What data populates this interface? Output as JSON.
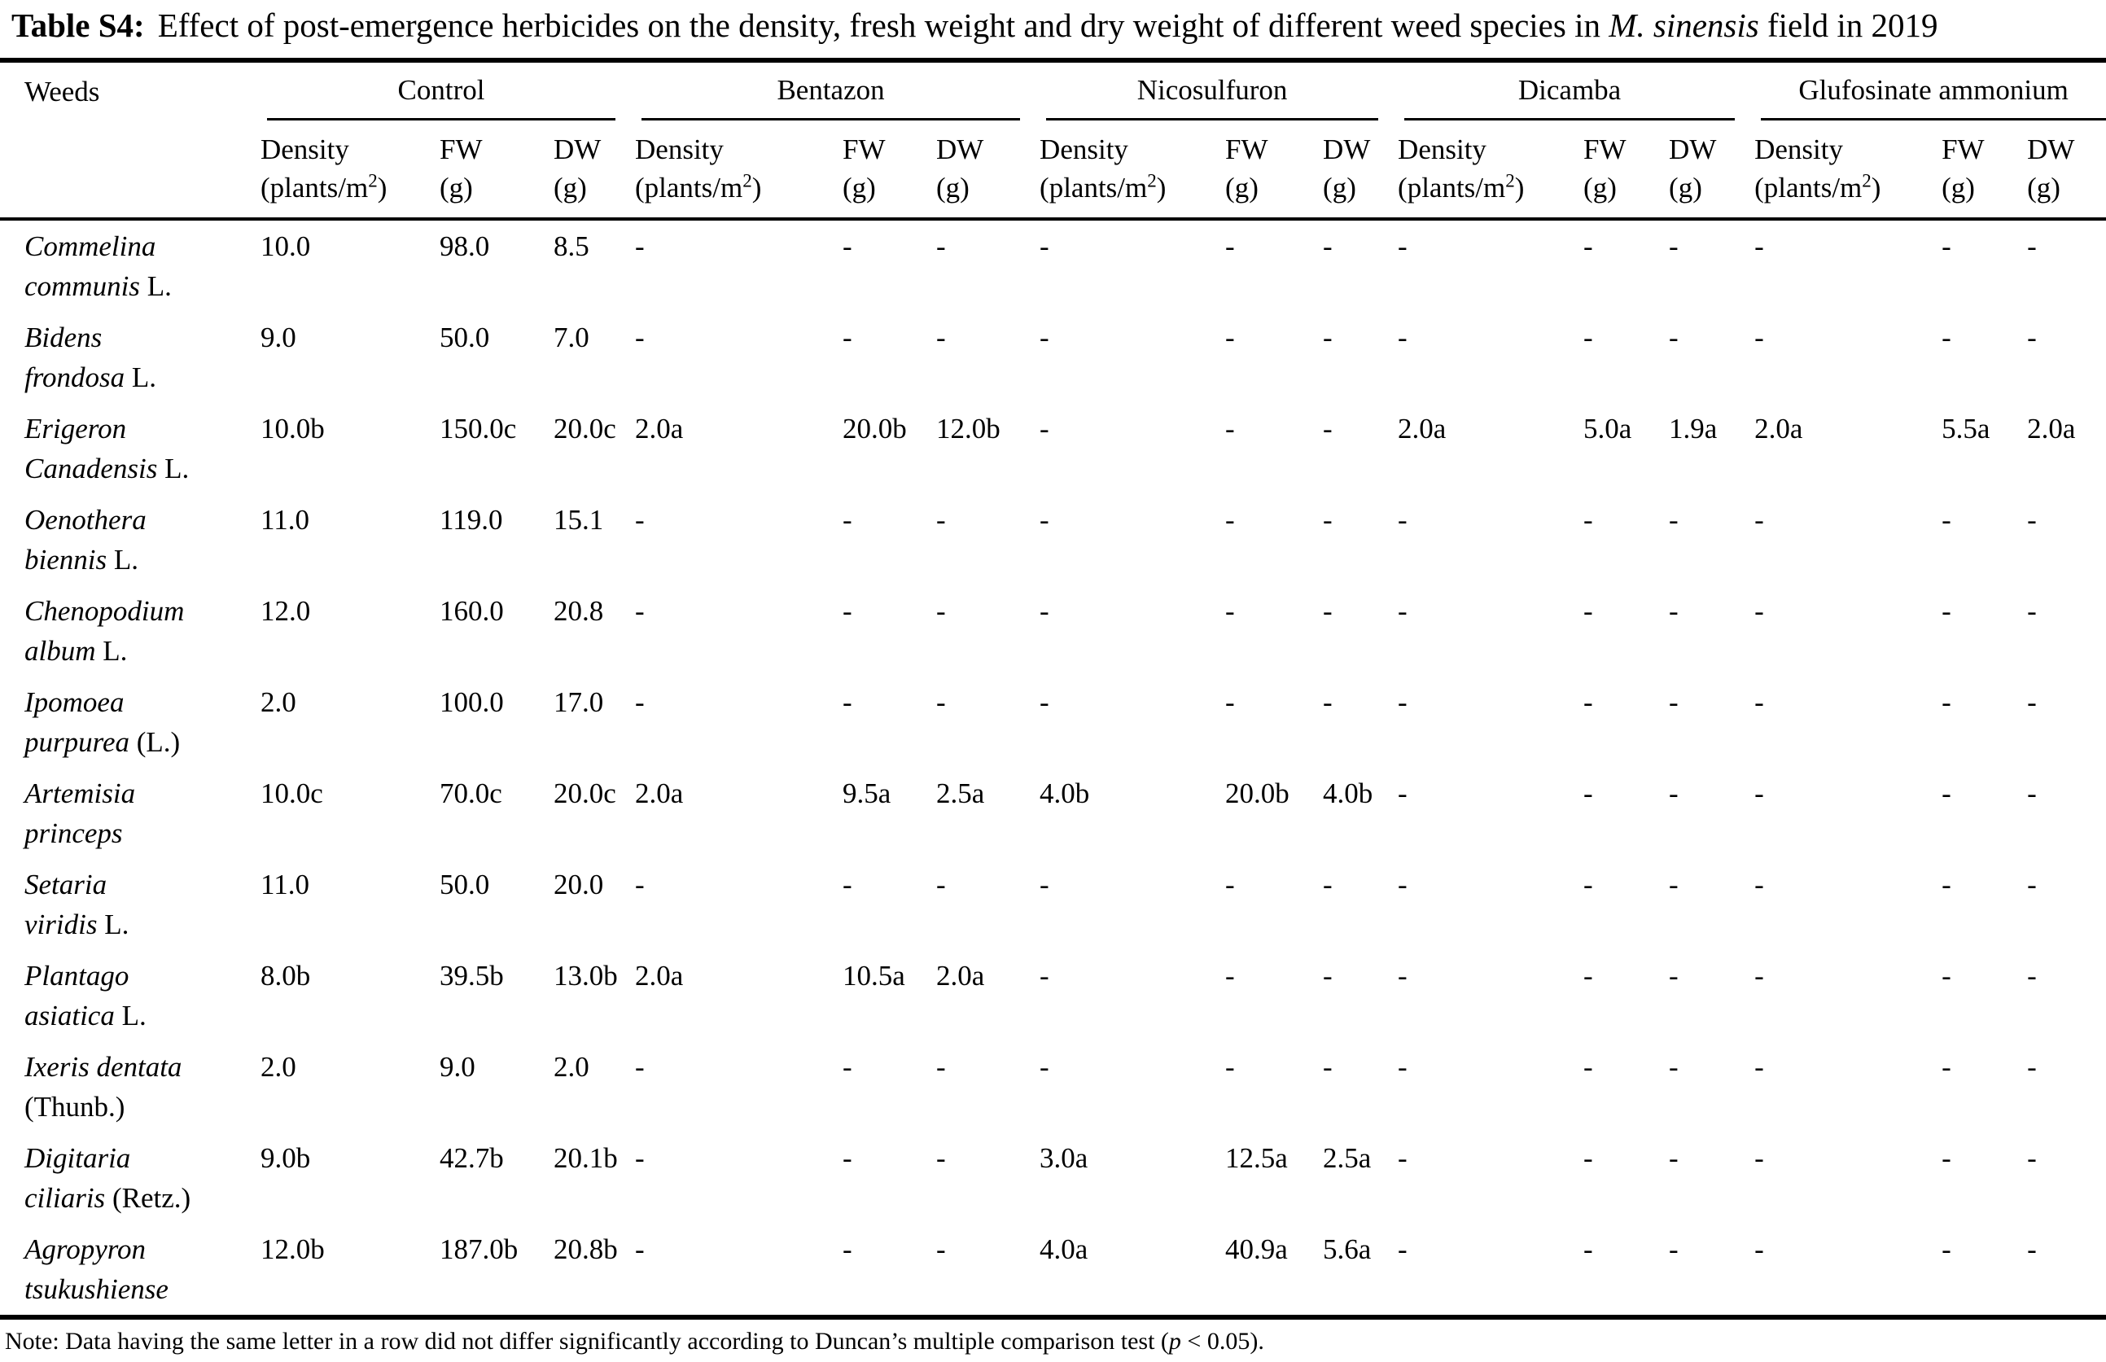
{
  "title": {
    "label": "Table S4:",
    "before_italic": "Effect of post-emergence herbicides on the density, fresh weight and dry weight of different weed species in ",
    "italic": "M. sinensis",
    "after_italic": " field in 2019"
  },
  "table": {
    "weeds_header": "Weeds",
    "groups": [
      "Control",
      "Bentazon",
      "Nicosulfuron",
      "Dicamba",
      "Glufosinate ammonium"
    ],
    "col_headers": {
      "density": {
        "line1": "Density",
        "line2_pre": "(plants/m",
        "line2_sup": "2",
        "line2_post": ")"
      },
      "fw": {
        "line1": "FW",
        "line2": "(g)"
      },
      "dw": {
        "line1": "DW",
        "line2": "(g)"
      }
    },
    "rows": [
      {
        "name": {
          "line1_italic": "Commelina",
          "line1_regular": "",
          "line2_italic": "communis",
          "line2_regular": " L."
        },
        "cells": [
          "10.0",
          "98.0",
          "8.5",
          "-",
          "-",
          "-",
          "-",
          "-",
          "-",
          "-",
          "-",
          "-",
          "-",
          "-",
          "-"
        ]
      },
      {
        "name": {
          "line1_italic": "Bidens",
          "line1_regular": "",
          "line2_italic": "frondosa",
          "line2_regular": " L."
        },
        "cells": [
          "9.0",
          "50.0",
          "7.0",
          "-",
          "-",
          "-",
          "-",
          "-",
          "-",
          "-",
          "-",
          "-",
          "-",
          "-",
          "-"
        ]
      },
      {
        "name": {
          "line1_italic": "Erigeron",
          "line1_regular": "",
          "line2_italic": "Canadensis",
          "line2_regular": " L."
        },
        "cells": [
          "10.0b",
          "150.0c",
          "20.0c",
          "2.0a",
          "20.0b",
          "12.0b",
          "-",
          "-",
          "-",
          "2.0a",
          "5.0a",
          "1.9a",
          "2.0a",
          "5.5a",
          "2.0a"
        ]
      },
      {
        "name": {
          "line1_italic": "Oenothera",
          "line1_regular": "",
          "line2_italic": "biennis",
          "line2_regular": " L."
        },
        "cells": [
          "11.0",
          "119.0",
          "15.1",
          "-",
          "-",
          "-",
          "-",
          "-",
          "-",
          "-",
          "-",
          "-",
          "-",
          "-",
          "-"
        ]
      },
      {
        "name": {
          "line1_italic": "Chenopodium",
          "line1_regular": "",
          "line2_italic": "album",
          "line2_regular": " L."
        },
        "cells": [
          "12.0",
          "160.0",
          "20.8",
          "-",
          "-",
          "-",
          "-",
          "-",
          "-",
          "-",
          "-",
          "-",
          "-",
          "-",
          "-"
        ]
      },
      {
        "name": {
          "line1_italic": "Ipomoea",
          "line1_regular": "",
          "line2_italic": "purpurea",
          "line2_regular": " (L.)"
        },
        "cells": [
          "2.0",
          "100.0",
          "17.0",
          "-",
          "-",
          "-",
          "-",
          "-",
          "-",
          "-",
          "-",
          "-",
          "-",
          "-",
          "-"
        ]
      },
      {
        "name": {
          "line1_italic": "Artemisia",
          "line1_regular": "",
          "line2_italic": "princeps",
          "line2_regular": ""
        },
        "cells": [
          "10.0c",
          "70.0c",
          "20.0c",
          "2.0a",
          "9.5a",
          "2.5a",
          "4.0b",
          "20.0b",
          "4.0b",
          "-",
          "-",
          "-",
          "-",
          "-",
          "-"
        ]
      },
      {
        "name": {
          "line1_italic": "Setaria",
          "line1_regular": "",
          "line2_italic": "viridis",
          "line2_regular": " L."
        },
        "cells": [
          "11.0",
          "50.0",
          "20.0",
          "-",
          "-",
          "-",
          "-",
          "-",
          "-",
          "-",
          "-",
          "-",
          "-",
          "-",
          "-"
        ]
      },
      {
        "name": {
          "line1_italic": "Plantago",
          "line1_regular": "",
          "line2_italic": "asiatica",
          "line2_regular": " L."
        },
        "cells": [
          "8.0b",
          "39.5b",
          "13.0b",
          "2.0a",
          "10.5a",
          "2.0a",
          "-",
          "-",
          "-",
          "-",
          "-",
          "-",
          "-",
          "-",
          "-"
        ]
      },
      {
        "name": {
          "line1_italic": "Ixeris dentata",
          "line1_regular": "",
          "line2_italic": "",
          "line2_regular": "(Thunb.)"
        },
        "cells": [
          "2.0",
          "9.0",
          "2.0",
          "-",
          "-",
          "-",
          "-",
          "-",
          "-",
          "-",
          "-",
          "-",
          "-",
          "-",
          "-"
        ]
      },
      {
        "name": {
          "line1_italic": "Digitaria",
          "line1_regular": "",
          "line2_italic": "ciliaris",
          "line2_regular": " (Retz.)"
        },
        "cells": [
          "9.0b",
          "42.7b",
          "20.1b",
          "-",
          "-",
          "-",
          "3.0a",
          "12.5a",
          "2.5a",
          "-",
          "-",
          "-",
          "-",
          "-",
          "-"
        ]
      },
      {
        "name": {
          "line1_italic": "Agropyron",
          "line1_regular": "",
          "line2_italic": "tsukushiense",
          "line2_regular": ""
        },
        "cells": [
          "12.0b",
          "187.0b",
          "20.8b",
          "-",
          "-",
          "-",
          "4.0a",
          "40.9a",
          "5.6a",
          "-",
          "-",
          "-",
          "-",
          "-",
          "-"
        ]
      }
    ]
  },
  "note": {
    "pre": "Note: Data having the same letter in a row did not differ significantly according to Duncan’s multiple comparison test (",
    "italic": "p",
    "post": " < 0.05)."
  }
}
